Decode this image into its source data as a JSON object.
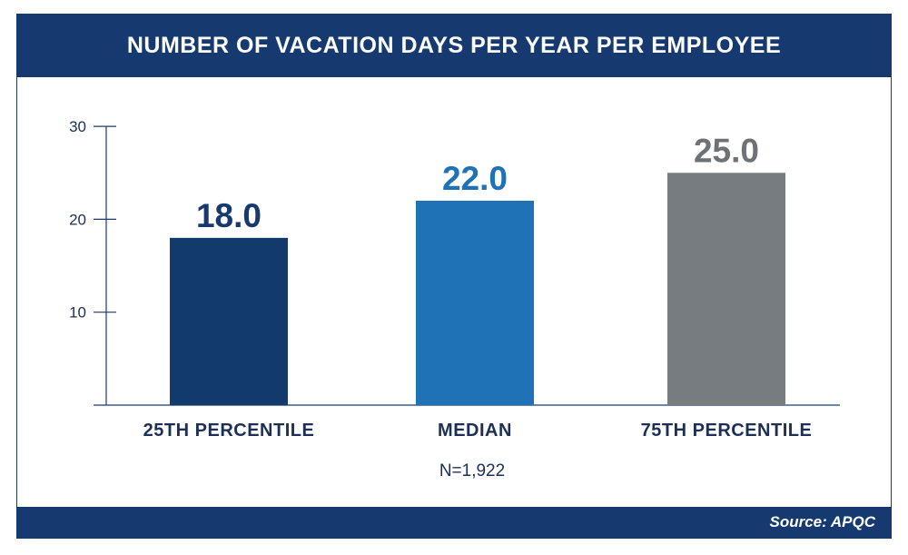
{
  "title": "NUMBER OF VACATION DAYS PER YEAR PER EMPLOYEE",
  "footnote": "N=1,922",
  "source": "Source: APQC",
  "colors": {
    "header_bg": "#163a70",
    "axis": "#1c3a6e",
    "text": "#1c2f57"
  },
  "chart_data": {
    "type": "bar",
    "categories": [
      "25TH PERCENTILE",
      "MEDIAN",
      "75TH PERCENTILE"
    ],
    "values": [
      18.0,
      22.0,
      25.0
    ],
    "value_labels": [
      "18.0",
      "22.0",
      "25.0"
    ],
    "bar_colors": [
      "#133a6c",
      "#1f72b6",
      "#777c80"
    ],
    "value_label_colors": [
      "#163a70",
      "#1f72b6",
      "#6e7276"
    ],
    "ylim": [
      0,
      30
    ],
    "yticks": [
      10,
      20,
      30
    ],
    "grid": false,
    "legend": "none"
  }
}
